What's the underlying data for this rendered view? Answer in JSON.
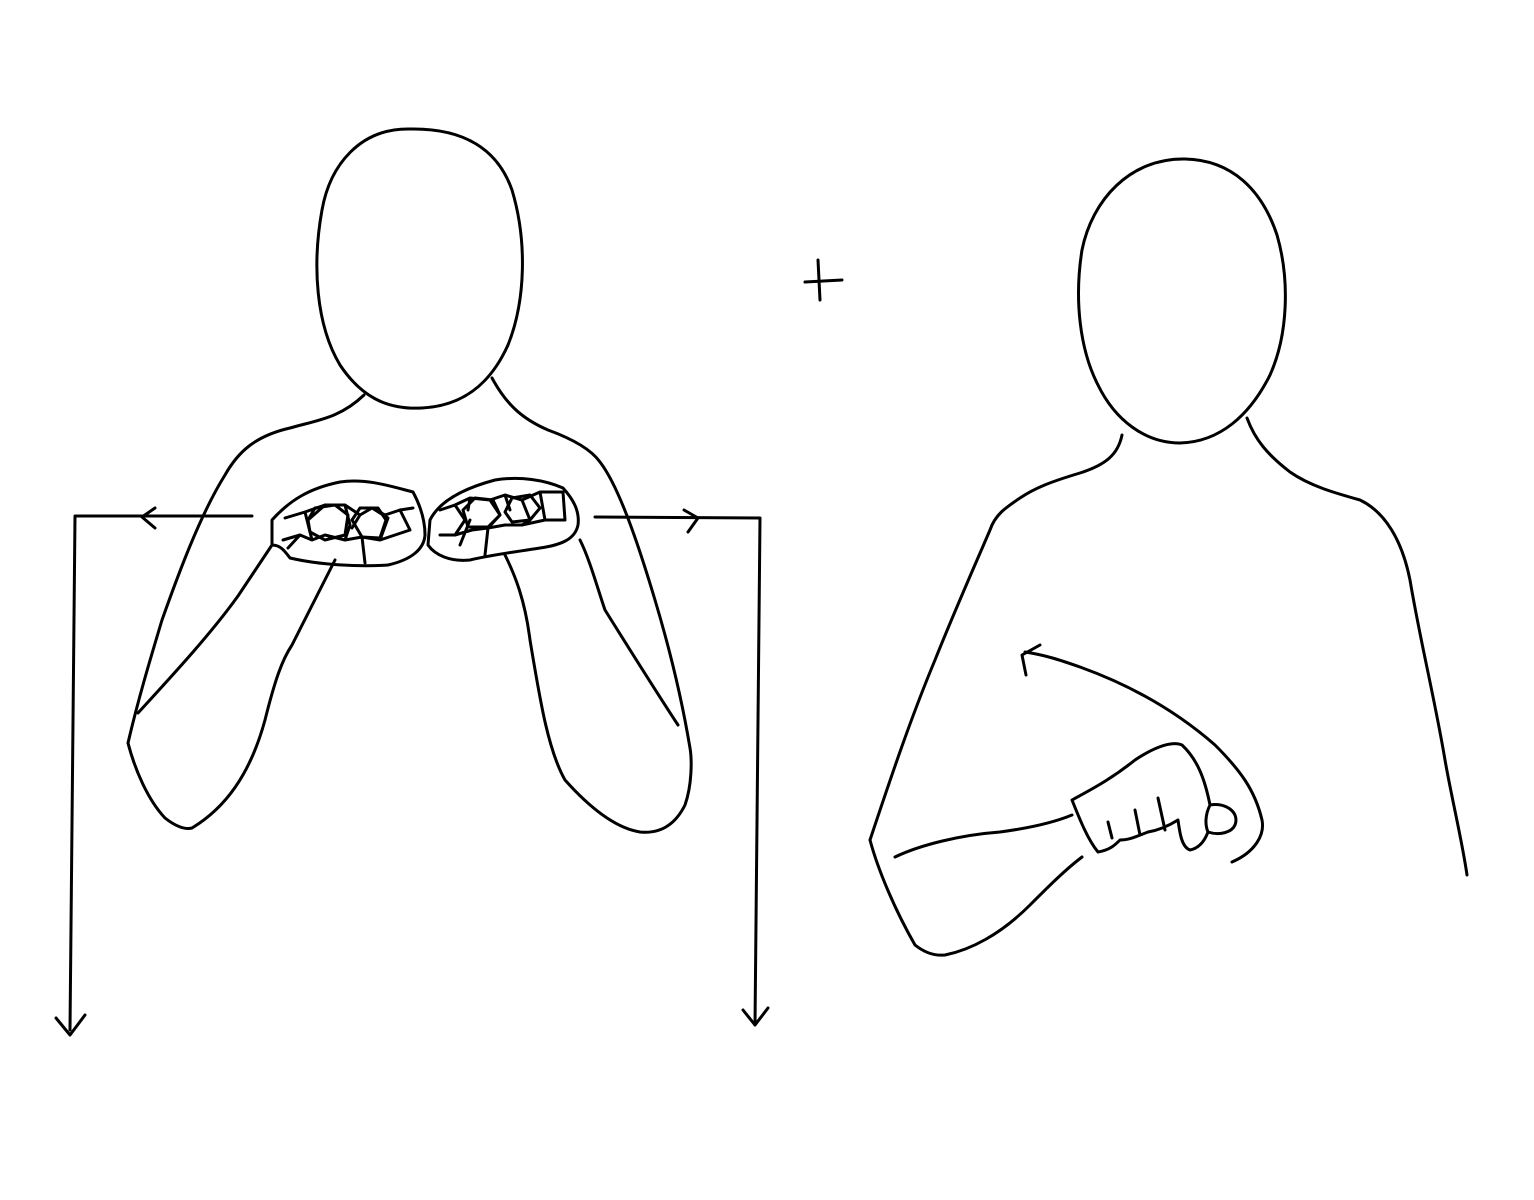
{
  "colors": {
    "background": "#ffffff",
    "stroke": "#000000"
  },
  "figures": [
    {
      "name": "signer-left",
      "handshape": "fists-touching",
      "movement": "apart-then-down"
    },
    {
      "name": "signer-right",
      "handshape": "fist",
      "movement": "arc-up-left"
    }
  ],
  "connector_symbol": "plus-icon"
}
